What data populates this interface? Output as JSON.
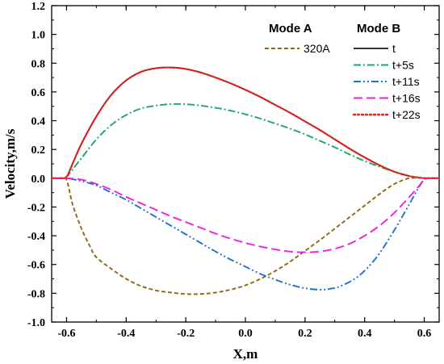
{
  "chart_data": {
    "type": "line",
    "xlabel": "X,m",
    "ylabel": "Velocity,m/s",
    "xlim": [
      -0.65,
      0.65
    ],
    "ylim": [
      -1.0,
      1.2
    ],
    "xticks": [
      -0.6,
      -0.4,
      -0.2,
      0.0,
      0.2,
      0.4,
      0.6
    ],
    "xtick_labels": [
      "-0.6",
      "-0.4",
      "-0.2",
      "0.0",
      "0.2",
      "0.4",
      "0.6"
    ],
    "yticks": [
      -1.0,
      -0.8,
      -0.6,
      -0.4,
      -0.2,
      0.0,
      0.2,
      0.4,
      0.6,
      0.8,
      1.0,
      1.2
    ],
    "ytick_labels": [
      "-1.0",
      "-0.8",
      "-0.6",
      "-0.4",
      "-0.2",
      "0.0",
      "0.2",
      "0.4",
      "0.6",
      "0.8",
      "1.0",
      "1.2"
    ],
    "grid": false,
    "legend": {
      "placement": "top-right",
      "groups": [
        {
          "title": "Mode A",
          "entries": [
            {
              "label": "320A",
              "color": "#8B6914",
              "style": "dash"
            }
          ]
        },
        {
          "title": "Mode B",
          "entries": [
            {
              "label": "t",
              "color": "#333333",
              "style": "solid"
            },
            {
              "label": "t+5s",
              "color": "#1ea564",
              "style": "dashdot"
            },
            {
              "label": "t+11s",
              "color": "#1f6fd6",
              "style": "dashdotdot"
            },
            {
              "label": "t+16s",
              "color": "#ee22dd",
              "style": "longdash"
            },
            {
              "label": "t+22s",
              "color": "#ff1a1a",
              "style": "dot"
            }
          ]
        }
      ]
    },
    "series": [
      {
        "name": "320A",
        "color": "#8B6914",
        "style": "dash",
        "x": [
          -0.65,
          -0.62,
          -0.6,
          -0.58,
          -0.55,
          -0.52,
          -0.5,
          -0.45,
          -0.4,
          -0.35,
          -0.3,
          -0.25,
          -0.2,
          -0.15,
          -0.1,
          -0.05,
          0.0,
          0.05,
          0.1,
          0.15,
          0.2,
          0.25,
          0.3,
          0.35,
          0.4,
          0.45,
          0.5,
          0.55,
          0.6,
          0.62,
          0.65
        ],
        "y": [
          0.0,
          0.0,
          -0.01,
          -0.18,
          -0.35,
          -0.48,
          -0.55,
          -0.63,
          -0.7,
          -0.75,
          -0.78,
          -0.795,
          -0.805,
          -0.805,
          -0.795,
          -0.775,
          -0.745,
          -0.7,
          -0.645,
          -0.58,
          -0.505,
          -0.43,
          -0.35,
          -0.27,
          -0.19,
          -0.11,
          -0.04,
          0.0,
          0.0,
          0.0,
          0.0
        ]
      },
      {
        "name": "t",
        "color": "#333333",
        "style": "solid",
        "x": [
          -0.65,
          -0.62,
          -0.6,
          -0.58,
          -0.55,
          -0.5,
          -0.45,
          -0.4,
          -0.35,
          -0.3,
          -0.25,
          -0.2,
          -0.15,
          -0.1,
          -0.05,
          0.0,
          0.05,
          0.1,
          0.15,
          0.2,
          0.25,
          0.3,
          0.35,
          0.4,
          0.45,
          0.5,
          0.55,
          0.58,
          0.6,
          0.62,
          0.65
        ],
        "y": [
          0.0,
          0.0,
          0.01,
          0.1,
          0.24,
          0.43,
          0.58,
          0.68,
          0.74,
          0.765,
          0.77,
          0.76,
          0.735,
          0.7,
          0.66,
          0.615,
          0.565,
          0.51,
          0.455,
          0.395,
          0.335,
          0.27,
          0.205,
          0.145,
          0.09,
          0.045,
          0.015,
          0.005,
          0.0,
          0.0,
          0.0
        ]
      },
      {
        "name": "t+5s",
        "color": "#1ea564",
        "style": "dashdot",
        "x": [
          -0.65,
          -0.62,
          -0.6,
          -0.58,
          -0.55,
          -0.5,
          -0.45,
          -0.4,
          -0.35,
          -0.3,
          -0.25,
          -0.2,
          -0.15,
          -0.1,
          -0.05,
          0.0,
          0.05,
          0.1,
          0.15,
          0.2,
          0.25,
          0.3,
          0.35,
          0.4,
          0.45,
          0.5,
          0.55,
          0.58,
          0.6,
          0.62,
          0.65
        ],
        "y": [
          0.0,
          0.0,
          0.01,
          0.06,
          0.14,
          0.27,
          0.37,
          0.44,
          0.485,
          0.505,
          0.515,
          0.515,
          0.505,
          0.49,
          0.47,
          0.445,
          0.415,
          0.38,
          0.345,
          0.305,
          0.26,
          0.215,
          0.165,
          0.12,
          0.08,
          0.045,
          0.015,
          0.005,
          0.0,
          0.0,
          0.0
        ]
      },
      {
        "name": "t+11s",
        "color": "#1f6fd6",
        "style": "dashdotdot",
        "x": [
          -0.65,
          -0.62,
          -0.6,
          -0.55,
          -0.5,
          -0.45,
          -0.4,
          -0.35,
          -0.3,
          -0.25,
          -0.2,
          -0.15,
          -0.1,
          -0.05,
          0.0,
          0.05,
          0.1,
          0.15,
          0.2,
          0.25,
          0.28,
          0.32,
          0.38,
          0.44,
          0.5,
          0.55,
          0.58,
          0.6,
          0.62,
          0.65
        ],
        "y": [
          0.0,
          0.0,
          0.0,
          -0.02,
          -0.05,
          -0.1,
          -0.15,
          -0.21,
          -0.27,
          -0.33,
          -0.39,
          -0.45,
          -0.51,
          -0.565,
          -0.615,
          -0.665,
          -0.705,
          -0.74,
          -0.765,
          -0.775,
          -0.77,
          -0.75,
          -0.68,
          -0.55,
          -0.36,
          -0.18,
          -0.07,
          -0.01,
          0.0,
          0.0
        ]
      },
      {
        "name": "t+16s",
        "color": "#ee22dd",
        "style": "longdash",
        "x": [
          -0.65,
          -0.62,
          -0.6,
          -0.55,
          -0.5,
          -0.45,
          -0.4,
          -0.35,
          -0.3,
          -0.25,
          -0.2,
          -0.15,
          -0.1,
          -0.05,
          0.0,
          0.05,
          0.1,
          0.15,
          0.2,
          0.25,
          0.3,
          0.35,
          0.4,
          0.45,
          0.5,
          0.55,
          0.58,
          0.6,
          0.62,
          0.65
        ],
        "y": [
          0.0,
          0.0,
          0.0,
          -0.01,
          -0.04,
          -0.08,
          -0.13,
          -0.175,
          -0.22,
          -0.265,
          -0.305,
          -0.345,
          -0.385,
          -0.42,
          -0.45,
          -0.475,
          -0.495,
          -0.51,
          -0.515,
          -0.51,
          -0.49,
          -0.455,
          -0.4,
          -0.33,
          -0.24,
          -0.13,
          -0.06,
          -0.01,
          0.0,
          0.0
        ]
      },
      {
        "name": "t+22s",
        "color": "#ff1a1a",
        "style": "dot",
        "x": [
          -0.65,
          -0.62,
          -0.6,
          -0.58,
          -0.55,
          -0.5,
          -0.45,
          -0.4,
          -0.35,
          -0.3,
          -0.25,
          -0.2,
          -0.15,
          -0.1,
          -0.05,
          0.0,
          0.05,
          0.1,
          0.15,
          0.2,
          0.25,
          0.3,
          0.35,
          0.4,
          0.45,
          0.5,
          0.55,
          0.58,
          0.6,
          0.62,
          0.65
        ],
        "y": [
          0.0,
          0.0,
          0.01,
          0.1,
          0.24,
          0.43,
          0.58,
          0.68,
          0.74,
          0.765,
          0.77,
          0.76,
          0.735,
          0.7,
          0.66,
          0.615,
          0.565,
          0.51,
          0.455,
          0.395,
          0.335,
          0.27,
          0.205,
          0.145,
          0.09,
          0.045,
          0.015,
          0.005,
          0.0,
          0.0,
          0.0
        ]
      }
    ]
  }
}
